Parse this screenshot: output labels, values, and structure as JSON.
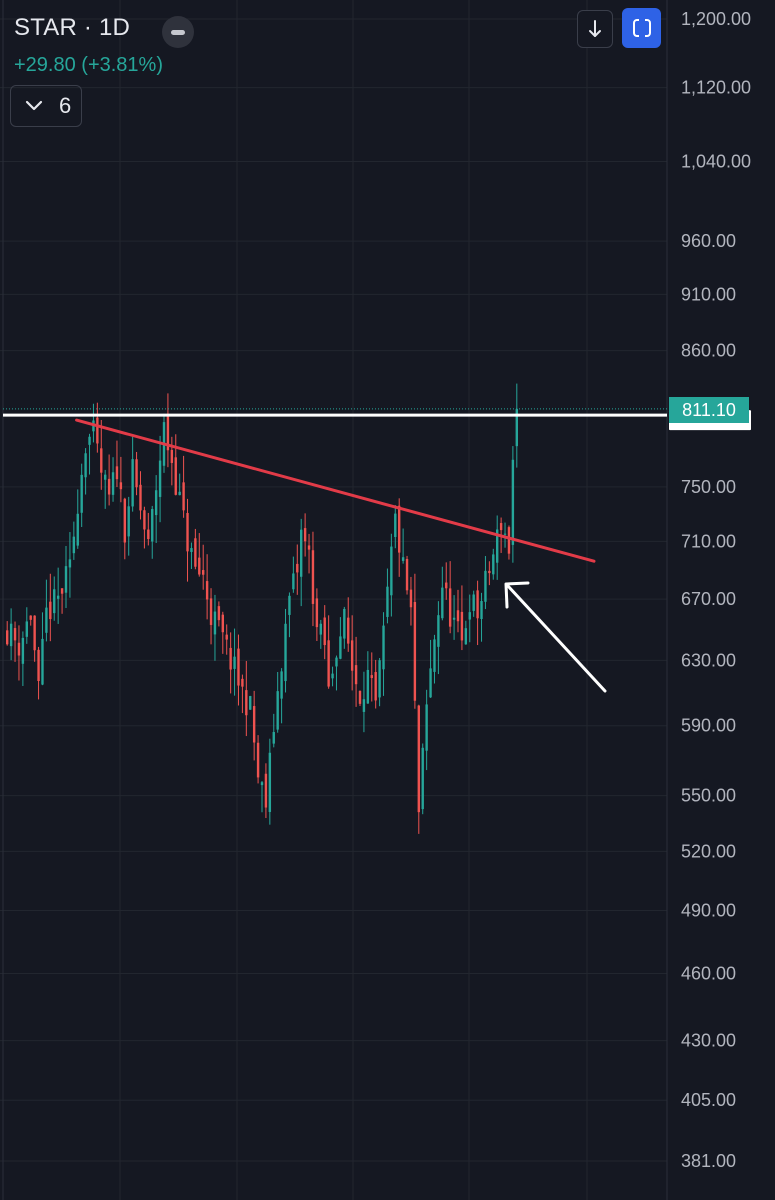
{
  "header": {
    "ticker": "STAR · 1D",
    "change": "+29.80 (+3.81%)",
    "indicator_count": "6"
  },
  "price_tag": "811.10",
  "colors": {
    "background": "#151822",
    "grid": "#22262f",
    "up": "#26a69a",
    "down": "#ef5350",
    "trendline": "#e23b48",
    "resistance": "#ffffff",
    "annotation_arrow": "#ffffff",
    "fullscreen_button": "#2e62e6"
  },
  "icons": {
    "collapse": "chevron-down-icon",
    "minimize": "minus-icon",
    "download": "arrow-down-icon",
    "fullscreen": "fullscreen-icon"
  },
  "chart_data": {
    "type": "candlestick",
    "interval": "1D",
    "scale": "log",
    "grid": true,
    "price_axis_labels": [
      "1,200.00",
      "1,120.00",
      "1,040.00",
      "960.00",
      "910.00",
      "860.00",
      "750.00",
      "710.00",
      "670.00",
      "630.00",
      "590.00",
      "550.00",
      "520.00",
      "490.00",
      "460.00",
      "430.00",
      "405.00",
      "381.00"
    ],
    "ylim": [
      370,
      1220
    ],
    "last_price": 811.1,
    "resistance_level": 806,
    "descending_trendline": {
      "start": {
        "bar": 18,
        "price": 802
      },
      "end": {
        "bar": 150,
        "price": 696
      }
    },
    "annotation": "white arrow pointing to the trendline breakout",
    "close_path": [
      [
        0,
        650
      ],
      [
        3,
        640
      ],
      [
        6,
        660
      ],
      [
        8,
        610
      ],
      [
        10,
        660
      ],
      [
        13,
        670
      ],
      [
        16,
        690
      ],
      [
        18,
        740
      ],
      [
        20,
        785
      ],
      [
        22,
        790
      ],
      [
        24,
        760
      ],
      [
        26,
        740
      ],
      [
        28,
        765
      ],
      [
        30,
        720
      ],
      [
        32,
        760
      ],
      [
        36,
        705
      ],
      [
        40,
        795
      ],
      [
        42,
        770
      ],
      [
        46,
        710
      ],
      [
        48,
        690
      ],
      [
        50,
        685
      ],
      [
        52,
        660
      ],
      [
        54,
        650
      ],
      [
        57,
        630
      ],
      [
        60,
        610
      ],
      [
        62,
        600
      ],
      [
        64,
        560
      ],
      [
        66,
        545
      ],
      [
        68,
        590
      ],
      [
        70,
        630
      ],
      [
        72,
        670
      ],
      [
        74,
        690
      ],
      [
        75,
        715
      ],
      [
        77,
        700
      ],
      [
        79,
        650
      ],
      [
        81,
        640
      ],
      [
        82,
        610
      ],
      [
        84,
        640
      ],
      [
        86,
        655
      ],
      [
        88,
        625
      ],
      [
        90,
        610
      ],
      [
        92,
        620
      ],
      [
        94,
        600
      ],
      [
        96,
        645
      ],
      [
        98,
        700
      ],
      [
        99,
        725
      ],
      [
        101,
        690
      ],
      [
        103,
        660
      ],
      [
        104,
        600
      ],
      [
        105,
        540
      ],
      [
        107,
        600
      ],
      [
        109,
        645
      ],
      [
        111,
        680
      ],
      [
        113,
        660
      ],
      [
        116,
        640
      ],
      [
        118,
        670
      ],
      [
        120,
        660
      ],
      [
        122,
        680
      ],
      [
        124,
        700
      ],
      [
        126,
        725
      ],
      [
        128,
        705
      ],
      [
        129,
        770
      ],
      [
        130,
        800
      ]
    ],
    "close_path_note": "[bar index, approximate close]"
  }
}
